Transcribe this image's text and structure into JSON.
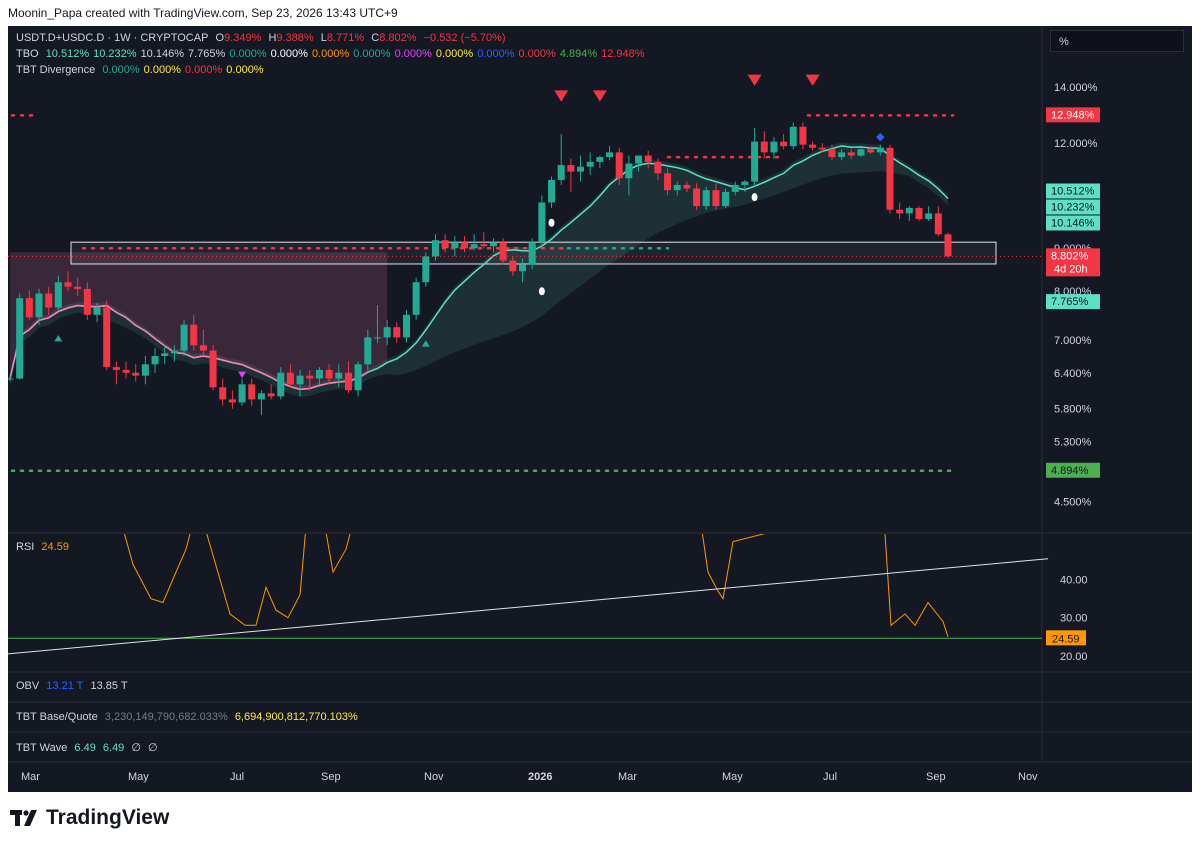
{
  "header": {
    "credit": "Moonin_Papa created with TradingView.com, Sep 23, 2026 13:43 UTC+9"
  },
  "symbol_line": {
    "symbol": "USDT.D+USDC.D · 1W · CRYPTOCAP",
    "o_label": "O",
    "o": "9.349%",
    "h_label": "H",
    "h": "9.388%",
    "l_label": "L",
    "l": "8.771%",
    "c_label": "C",
    "c": "8.802%",
    "change": "−0.532 (−5.70%)"
  },
  "tbo_line": {
    "name": "TBO",
    "values": [
      {
        "v": "10.512%",
        "color": "#5ee0c4"
      },
      {
        "v": "10.232%",
        "color": "#5ee0c4"
      },
      {
        "v": "10.146%",
        "color": "#d1d4dc"
      },
      {
        "v": "7.765%",
        "color": "#d1d4dc"
      },
      {
        "v": "0.000%",
        "color": "#22ab94"
      },
      {
        "v": "0.000%",
        "color": "#ffffff"
      },
      {
        "v": "0.000%",
        "color": "#ff9800"
      },
      {
        "v": "0.000%",
        "color": "#22ab94"
      },
      {
        "v": "0.000%",
        "color": "#e040fb"
      },
      {
        "v": "0.000%",
        "color": "#ffeb3b"
      },
      {
        "v": "0.000%",
        "color": "#2962ff"
      },
      {
        "v": "0.000%",
        "color": "#f23645"
      },
      {
        "v": "4.894%",
        "color": "#4caf50"
      },
      {
        "v": "12.948%",
        "color": "#f23645"
      }
    ]
  },
  "tbt_div_line": {
    "name": "TBT Divergence",
    "values": [
      {
        "v": "0.000%",
        "color": "#22ab94"
      },
      {
        "v": "0.000%",
        "color": "#ffeb3b"
      },
      {
        "v": "0.000%",
        "color": "#f23645"
      },
      {
        "v": "0.000%",
        "color": "#ffeb3b"
      }
    ]
  },
  "scale_box": "%",
  "rsi_legend": {
    "name": "RSI",
    "value": "24.59"
  },
  "obv_legend": {
    "name": "OBV",
    "v1": "13.21 T",
    "v2": "13.85 T"
  },
  "tbt_bq_legend": {
    "name": "TBT Base/Quote",
    "v1": "3,230,149,790,682.033%",
    "v2": "6,694,900,812,770.103%"
  },
  "tbt_wave_legend": {
    "name": "TBT Wave",
    "v1": "6.49",
    "v2": "6.49",
    "v3": "∅",
    "v4": "∅"
  },
  "logo_text": "TradingView",
  "chart_data": {
    "type": "candlestick",
    "price_axis": {
      "scale": "log",
      "ticks": [
        "14.000%",
        "12.000%",
        "10.000%",
        "9.000%",
        "8.000%",
        "7.000%",
        "6.400%",
        "5.800%",
        "5.300%",
        "4.500%"
      ],
      "tick_values": [
        14.0,
        12.0,
        10.0,
        9.0,
        8.0,
        7.0,
        6.4,
        5.8,
        5.3,
        4.5
      ]
    },
    "time_axis": {
      "labels": [
        "Mar",
        "May",
        "Jul",
        "Sep",
        "Nov",
        "2026",
        "Mar",
        "May",
        "Jul",
        "Sep",
        "Nov"
      ]
    },
    "candles": [
      [
        6.3,
        6.35,
        6.25,
        6.3
      ],
      [
        6.3,
        7.95,
        6.28,
        7.85
      ],
      [
        7.85,
        8.02,
        7.4,
        7.45
      ],
      [
        7.45,
        8.05,
        7.3,
        7.95
      ],
      [
        7.95,
        8.1,
        7.5,
        7.65
      ],
      [
        7.65,
        8.35,
        7.6,
        8.2
      ],
      [
        8.2,
        8.45,
        8.0,
        8.1
      ],
      [
        8.1,
        8.3,
        7.9,
        8.05
      ],
      [
        8.05,
        8.2,
        7.4,
        7.5
      ],
      [
        7.5,
        7.75,
        7.35,
        7.65
      ],
      [
        7.65,
        7.8,
        6.45,
        6.5
      ],
      [
        6.5,
        6.6,
        6.2,
        6.45
      ],
      [
        6.45,
        6.6,
        6.3,
        6.4
      ],
      [
        6.4,
        6.55,
        6.25,
        6.35
      ],
      [
        6.35,
        6.7,
        6.2,
        6.55
      ],
      [
        6.55,
        6.85,
        6.4,
        6.7
      ],
      [
        6.7,
        6.9,
        6.55,
        6.75
      ],
      [
        6.75,
        6.9,
        6.6,
        6.8
      ],
      [
        6.8,
        7.4,
        6.7,
        7.3
      ],
      [
        7.3,
        7.5,
        6.8,
        6.9
      ],
      [
        6.9,
        7.2,
        6.7,
        6.8
      ],
      [
        6.8,
        6.9,
        6.1,
        6.15
      ],
      [
        6.15,
        6.3,
        5.85,
        5.95
      ],
      [
        5.95,
        6.1,
        5.8,
        5.9
      ],
      [
        5.9,
        6.3,
        5.85,
        6.2
      ],
      [
        6.2,
        6.3,
        5.85,
        5.95
      ],
      [
        5.95,
        6.1,
        5.7,
        6.05
      ],
      [
        6.05,
        6.2,
        5.95,
        6.0
      ],
      [
        6.0,
        6.5,
        5.95,
        6.4
      ],
      [
        6.4,
        6.55,
        6.15,
        6.2
      ],
      [
        6.2,
        6.45,
        6.0,
        6.35
      ],
      [
        6.35,
        6.45,
        6.1,
        6.3
      ],
      [
        6.3,
        6.5,
        6.2,
        6.45
      ],
      [
        6.45,
        6.55,
        6.2,
        6.3
      ],
      [
        6.3,
        6.55,
        6.15,
        6.4
      ],
      [
        6.4,
        6.6,
        6.05,
        6.1
      ],
      [
        6.1,
        6.6,
        6.0,
        6.55
      ],
      [
        6.55,
        7.2,
        6.45,
        7.05
      ],
      [
        7.05,
        7.7,
        6.95,
        7.05
      ],
      [
        7.05,
        7.4,
        6.9,
        7.25
      ],
      [
        7.25,
        7.35,
        6.95,
        7.05
      ],
      [
        7.05,
        7.6,
        6.95,
        7.5
      ],
      [
        7.5,
        8.3,
        7.4,
        8.2
      ],
      [
        8.2,
        8.9,
        8.1,
        8.8
      ],
      [
        8.8,
        9.35,
        8.7,
        9.2
      ],
      [
        9.2,
        9.35,
        8.9,
        9.0
      ],
      [
        9.0,
        9.3,
        8.8,
        9.15
      ],
      [
        9.15,
        9.3,
        8.9,
        9.0
      ],
      [
        9.0,
        9.35,
        8.95,
        9.1
      ],
      [
        9.1,
        9.4,
        9.0,
        9.05
      ],
      [
        9.05,
        9.25,
        8.9,
        9.15
      ],
      [
        9.15,
        9.25,
        8.6,
        8.7
      ],
      [
        8.7,
        8.8,
        8.35,
        8.45
      ],
      [
        8.45,
        8.75,
        8.2,
        8.6
      ],
      [
        8.6,
        9.25,
        8.5,
        9.15
      ],
      [
        9.15,
        10.4,
        9.05,
        10.2
      ],
      [
        10.2,
        10.95,
        10.05,
        10.85
      ],
      [
        10.85,
        12.3,
        10.7,
        11.3
      ],
      [
        11.3,
        11.5,
        10.5,
        11.1
      ],
      [
        11.1,
        11.6,
        10.8,
        11.25
      ],
      [
        11.25,
        11.7,
        11.0,
        11.4
      ],
      [
        11.4,
        11.6,
        11.2,
        11.55
      ],
      [
        11.55,
        11.9,
        11.45,
        11.7
      ],
      [
        11.7,
        11.85,
        10.7,
        10.9
      ],
      [
        10.9,
        11.6,
        10.4,
        11.35
      ],
      [
        11.35,
        11.6,
        11.1,
        11.6
      ],
      [
        11.6,
        11.75,
        11.2,
        11.4
      ],
      [
        11.4,
        11.5,
        10.85,
        11.05
      ],
      [
        11.05,
        11.2,
        10.4,
        10.55
      ],
      [
        10.55,
        10.8,
        10.4,
        10.7
      ],
      [
        10.7,
        10.8,
        10.5,
        10.6
      ],
      [
        10.6,
        10.75,
        10.0,
        10.1
      ],
      [
        10.1,
        10.65,
        10.0,
        10.55
      ],
      [
        10.55,
        10.75,
        10.0,
        10.1
      ],
      [
        10.1,
        10.6,
        10.05,
        10.5
      ],
      [
        10.5,
        10.8,
        10.4,
        10.7
      ],
      [
        10.7,
        10.85,
        10.5,
        10.8
      ],
      [
        10.8,
        12.5,
        10.7,
        12.05
      ],
      [
        12.05,
        12.4,
        11.5,
        11.7
      ],
      [
        11.7,
        12.2,
        11.5,
        12.05
      ],
      [
        12.05,
        12.3,
        11.8,
        11.9
      ],
      [
        11.9,
        12.7,
        11.8,
        12.55
      ],
      [
        12.55,
        12.7,
        11.8,
        11.95
      ],
      [
        11.95,
        12.05,
        11.75,
        11.85
      ],
      [
        11.85,
        12.0,
        11.7,
        11.8
      ],
      [
        11.8,
        11.95,
        11.45,
        11.55
      ],
      [
        11.55,
        11.8,
        11.45,
        11.7
      ],
      [
        11.7,
        11.8,
        11.5,
        11.6
      ],
      [
        11.6,
        11.85,
        11.55,
        11.8
      ],
      [
        11.8,
        11.9,
        11.65,
        11.7
      ],
      [
        11.7,
        11.95,
        11.6,
        11.85
      ],
      [
        11.85,
        11.95,
        9.9,
        10.0
      ],
      [
        10.0,
        10.2,
        9.75,
        9.9
      ],
      [
        9.9,
        10.1,
        9.7,
        10.05
      ],
      [
        10.05,
        10.1,
        9.7,
        9.75
      ],
      [
        9.75,
        10.1,
        9.7,
        9.9
      ],
      [
        9.9,
        10.1,
        9.3,
        9.35
      ],
      [
        9.349,
        9.388,
        8.771,
        8.802
      ]
    ],
    "levels": [
      {
        "name": "TBO",
        "value": 12.948,
        "label": "12.948%",
        "color": "#f23645"
      },
      {
        "value": 10.512,
        "label": "10.512%",
        "color": "#5ee0c4"
      },
      {
        "value": 10.232,
        "label": "10.232%",
        "color": "#5ee0c4"
      },
      {
        "value": 10.146,
        "label": "10.146%",
        "color": "#5ee0c4"
      },
      {
        "value": 8.802,
        "label": "8.802%",
        "sub": "4d 20h",
        "color": "#f23645"
      },
      {
        "value": 7.765,
        "label": "7.765%",
        "color": "#5ee0c4"
      },
      {
        "value": 4.894,
        "label": "4.894%",
        "color": "#4caf50"
      }
    ],
    "zone": {
      "top": 9.15,
      "bottom": 8.62
    },
    "rsi": {
      "axis_ticks": [
        40.0,
        30.0,
        20.0
      ],
      "current": 24.59,
      "current_label": "24.59",
      "values": [
        60,
        55,
        48,
        38,
        35,
        34,
        40,
        48,
        60,
        70,
        60,
        55,
        45,
        38,
        30,
        28,
        28,
        40,
        36,
        32,
        35,
        40,
        60,
        65,
        70,
        55,
        60,
        65,
        70
      ]
    },
    "colors": {
      "up": "#22ab94",
      "down": "#f23645",
      "bg": "#141823",
      "rsi": "#ff9800",
      "ma": "#5ee0c4",
      "ma_old": "#ff7eb3"
    }
  }
}
